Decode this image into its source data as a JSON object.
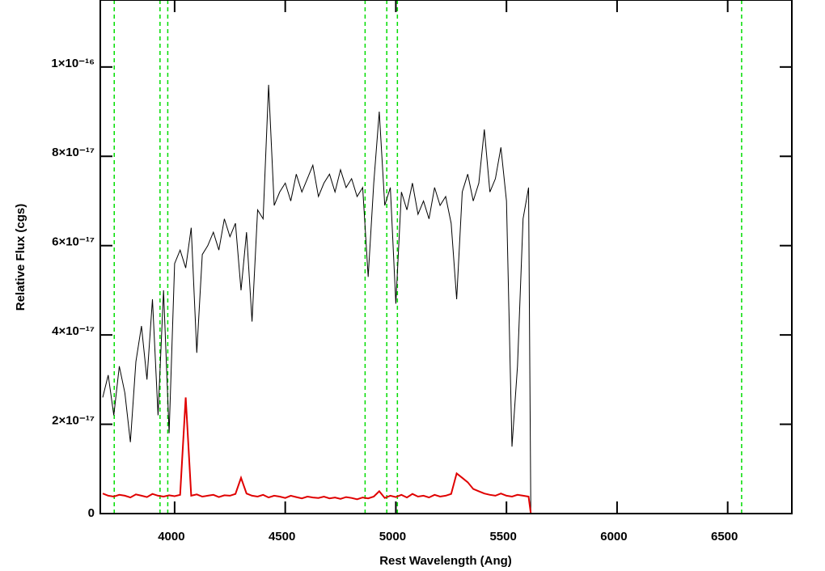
{
  "chart_data": {
    "type": "line",
    "xlabel": "Rest Wavelength (Ang)",
    "ylabel": "Relative Flux (cgs)",
    "x": [
      3675,
      3700,
      3725,
      3750,
      3775,
      3800,
      3825,
      3850,
      3875,
      3900,
      3925,
      3950,
      3975,
      4000,
      4025,
      4050,
      4075,
      4100,
      4125,
      4150,
      4175,
      4200,
      4225,
      4250,
      4275,
      4300,
      4325,
      4350,
      4375,
      4400,
      4425,
      4450,
      4475,
      4500,
      4525,
      4550,
      4575,
      4600,
      4625,
      4650,
      4675,
      4700,
      4725,
      4750,
      4775,
      4800,
      4825,
      4850,
      4875,
      4900,
      4925,
      4950,
      4975,
      5000,
      5025,
      5050,
      5075,
      5100,
      5125,
      5150,
      5175,
      5200,
      5225,
      5250,
      5275,
      5300,
      5325,
      5350,
      5375,
      5400,
      5425,
      5450,
      5475,
      5500,
      5525,
      5550,
      5575,
      5600,
      5610,
      6790
    ],
    "series": [
      {
        "name": "flux",
        "color": "#000000",
        "width": 1,
        "values": [
          2.6e-17,
          3.1e-17,
          2.2e-17,
          3.3e-17,
          2.7e-17,
          1.6e-17,
          3.4e-17,
          4.2e-17,
          3e-17,
          4.8e-17,
          2.2e-17,
          5e-17,
          1.8e-17,
          5.6e-17,
          5.9e-17,
          5.5e-17,
          6.4e-17,
          3.6e-17,
          5.8e-17,
          6e-17,
          6.3e-17,
          5.9e-17,
          6.6e-17,
          6.2e-17,
          6.5e-17,
          5e-17,
          6.3e-17,
          4.3e-17,
          6.8e-17,
          6.6e-17,
          9.6e-17,
          6.9e-17,
          7.2e-17,
          7.4e-17,
          7e-17,
          7.6e-17,
          7.2e-17,
          7.5e-17,
          7.8e-17,
          7.1e-17,
          7.4e-17,
          7.6e-17,
          7.2e-17,
          7.7e-17,
          7.3e-17,
          7.5e-17,
          7.1e-17,
          7.3e-17,
          5.3e-17,
          7.4e-17,
          9e-17,
          6.9e-17,
          7.3e-17,
          4.7e-17,
          7.2e-17,
          6.8e-17,
          7.4e-17,
          6.7e-17,
          7e-17,
          6.6e-17,
          7.3e-17,
          6.9e-17,
          7.1e-17,
          6.5e-17,
          4.8e-17,
          7.2e-17,
          7.6e-17,
          7e-17,
          7.4e-17,
          8.6e-17,
          7.2e-17,
          7.5e-17,
          8.2e-17,
          7e-17,
          1.5e-17,
          3.3e-17,
          6.6e-17,
          7.3e-17,
          0,
          0
        ]
      },
      {
        "name": "error",
        "color": "#e00000",
        "width": 2,
        "values": [
          4.5e-18,
          4e-18,
          3.8e-18,
          4.2e-18,
          4e-18,
          3.6e-18,
          4.3e-18,
          4e-18,
          3.7e-18,
          4.4e-18,
          4e-18,
          3.8e-18,
          4.1e-18,
          3.9e-18,
          4.2e-18,
          2.6e-17,
          4e-18,
          4.3e-18,
          3.8e-18,
          4e-18,
          4.2e-18,
          3.7e-18,
          4.1e-18,
          4e-18,
          4.4e-18,
          8e-18,
          4.5e-18,
          4e-18,
          3.8e-18,
          4.2e-18,
          3.6e-18,
          4e-18,
          3.8e-18,
          3.5e-18,
          4e-18,
          3.7e-18,
          3.4e-18,
          3.8e-18,
          3.6e-18,
          3.5e-18,
          3.8e-18,
          3.4e-18,
          3.6e-18,
          3.3e-18,
          3.7e-18,
          3.5e-18,
          3.2e-18,
          3.6e-18,
          3.4e-18,
          3.8e-18,
          5e-18,
          3.5e-18,
          4e-18,
          3.7e-18,
          4.2e-18,
          3.6e-18,
          4.4e-18,
          3.8e-18,
          4e-18,
          3.6e-18,
          4.2e-18,
          3.8e-18,
          4e-18,
          4.4e-18,
          9e-18,
          8e-18,
          7e-18,
          5.5e-18,
          5e-18,
          4.5e-18,
          4.2e-18,
          4e-18,
          4.5e-18,
          4e-18,
          3.8e-18,
          4.2e-18,
          4e-18,
          3.8e-18,
          0,
          0
        ]
      }
    ],
    "vlines": [
      3727,
      3934,
      3969,
      4861,
      4959,
      5007,
      6563
    ],
    "vline_color": "#00dd00",
    "xlim": [
      3664,
      6790
    ],
    "ylim": [
      0,
      1.15e-16
    ],
    "xticks": [
      4000,
      4500,
      5000,
      5500,
      6000,
      6500
    ],
    "yticks": [
      0,
      {
        "value": 2e-17,
        "label": "2×10⁻¹⁷"
      },
      {
        "value": 4e-17,
        "label": "4×10⁻¹⁷"
      },
      {
        "value": 6e-17,
        "label": "6×10⁻¹⁷"
      },
      {
        "value": 8e-17,
        "label": "8×10⁻¹⁷"
      },
      {
        "value": 1e-16,
        "label": "1×10⁻¹⁶"
      }
    ]
  }
}
